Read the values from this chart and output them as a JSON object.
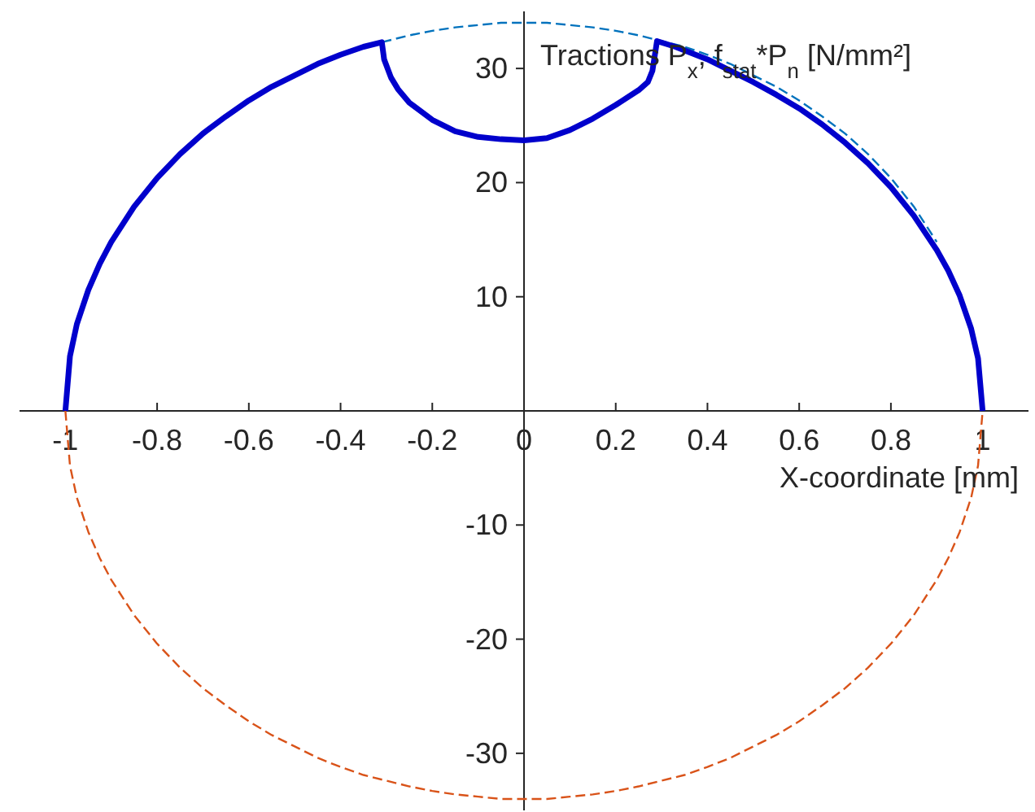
{
  "chart_data": {
    "type": "line",
    "xlabel": "X-coordinate [mm]",
    "ylabel": "Tractions P$_{x}$, f$_{stat}$*P$_{n}$ [N/mm²]",
    "xlim": [
      -1.1,
      1.1
    ],
    "ylim": [
      -35,
      35
    ],
    "xticks": [
      -1,
      -0.8,
      -0.6,
      -0.4,
      -0.2,
      0,
      0.2,
      0.4,
      0.6,
      0.8,
      1
    ],
    "yticks": [
      -30,
      -20,
      -10,
      10,
      20,
      30
    ],
    "series": [
      {
        "color": "#0072bd",
        "line_style": "dashed",
        "x": [
          -0.31,
          -0.25,
          -0.2,
          -0.15,
          -0.1,
          -0.05,
          0,
          0.05,
          0.1,
          0.15,
          0.2,
          0.25,
          0.3,
          0.35,
          0.4,
          0.45,
          0.5,
          0.55,
          0.6,
          0.65,
          0.7,
          0.75,
          0.8,
          0.85,
          0.9
        ],
        "values": [
          32.3,
          32.9,
          33.3,
          33.6,
          33.8,
          34.0,
          34.0,
          34.0,
          33.8,
          33.6,
          33.3,
          32.9,
          32.4,
          31.9,
          31.2,
          30.4,
          29.4,
          28.4,
          27.2,
          25.8,
          24.3,
          22.5,
          20.4,
          17.9,
          14.8
        ]
      },
      {
        "color": "#d95319",
        "line_style": "dashed",
        "x": [
          -1,
          -0.99,
          -0.975,
          -0.95,
          -0.925,
          -0.9,
          -0.85,
          -0.8,
          -0.75,
          -0.7,
          -0.65,
          -0.6,
          -0.55,
          -0.5,
          -0.45,
          -0.4,
          -0.35,
          -0.3,
          -0.25,
          -0.2,
          -0.15,
          -0.1,
          -0.05,
          0,
          0.05,
          0.1,
          0.15,
          0.2,
          0.25,
          0.3,
          0.35,
          0.4,
          0.45,
          0.5,
          0.55,
          0.6,
          0.65,
          0.7,
          0.75,
          0.8,
          0.85,
          0.9,
          0.925,
          0.95,
          0.975,
          0.99,
          1
        ],
        "values": [
          0,
          -4.8,
          -7.6,
          -10.6,
          -12.9,
          -14.8,
          -17.9,
          -20.4,
          -22.5,
          -24.3,
          -25.8,
          -27.2,
          -28.4,
          -29.4,
          -30.4,
          -31.2,
          -31.9,
          -32.4,
          -32.9,
          -33.3,
          -33.6,
          -33.8,
          -34.0,
          -34.0,
          -34.0,
          -33.8,
          -33.6,
          -33.3,
          -32.9,
          -32.4,
          -31.9,
          -31.2,
          -30.4,
          -29.4,
          -28.4,
          -27.2,
          -25.8,
          -24.3,
          -22.5,
          -20.4,
          -17.9,
          -14.8,
          -12.9,
          -10.6,
          -7.6,
          -4.8,
          0
        ]
      },
      {
        "color": "#0000cc",
        "line_style": "solid",
        "x": [
          -1,
          -0.99,
          -0.975,
          -0.95,
          -0.925,
          -0.9,
          -0.85,
          -0.8,
          -0.75,
          -0.7,
          -0.65,
          -0.6,
          -0.55,
          -0.5,
          -0.45,
          -0.4,
          -0.35,
          -0.31,
          -0.305,
          -0.29,
          -0.275,
          -0.25,
          -0.2,
          -0.15,
          -0.1,
          -0.05,
          0,
          0.05,
          0.1,
          0.15,
          0.2,
          0.25,
          0.27,
          0.28,
          0.29,
          0.33,
          0.4,
          0.45,
          0.5,
          0.55,
          0.6,
          0.65,
          0.7,
          0.75,
          0.8,
          0.85,
          0.9,
          0.925,
          0.95,
          0.975,
          0.99,
          1
        ],
        "values": [
          0,
          4.8,
          7.6,
          10.6,
          12.9,
          14.8,
          17.9,
          20.4,
          22.5,
          24.3,
          25.8,
          27.2,
          28.4,
          29.4,
          30.4,
          31.2,
          31.9,
          32.3,
          30.8,
          29.2,
          28.2,
          27.0,
          25.5,
          24.5,
          24.0,
          23.8,
          23.7,
          23.9,
          24.6,
          25.6,
          26.8,
          28.1,
          28.8,
          29.8,
          32.4,
          31.9,
          30.8,
          29.8,
          28.8,
          27.7,
          26.5,
          25.1,
          23.5,
          21.7,
          19.6,
          17.1,
          14.1,
          12.3,
          10.1,
          7.2,
          4.6,
          0
        ]
      }
    ]
  }
}
